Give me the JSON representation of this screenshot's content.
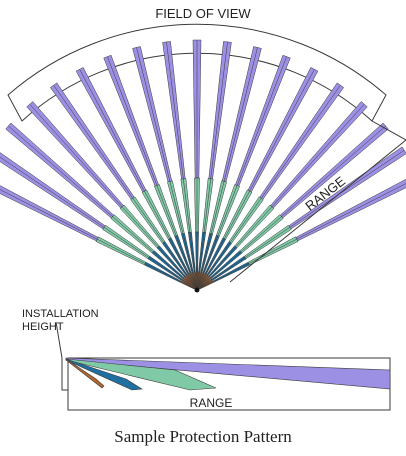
{
  "top_view": {
    "field_of_view_label": "FIELD OF VIEW",
    "range_label": "RANGE"
  },
  "side_view": {
    "installation_height_label_line1": "INSTALLATION",
    "installation_height_label_line2": "HEIGHT",
    "range_label": "RANGE"
  },
  "caption": "Sample Protection Pattern",
  "colors": {
    "far_zone": "#9b90e4",
    "mid_zone": "#7fc9a7",
    "near_zone": "#1f6fa1",
    "closest_zone": "#b5652f",
    "outline": "#3a3a3a"
  }
}
